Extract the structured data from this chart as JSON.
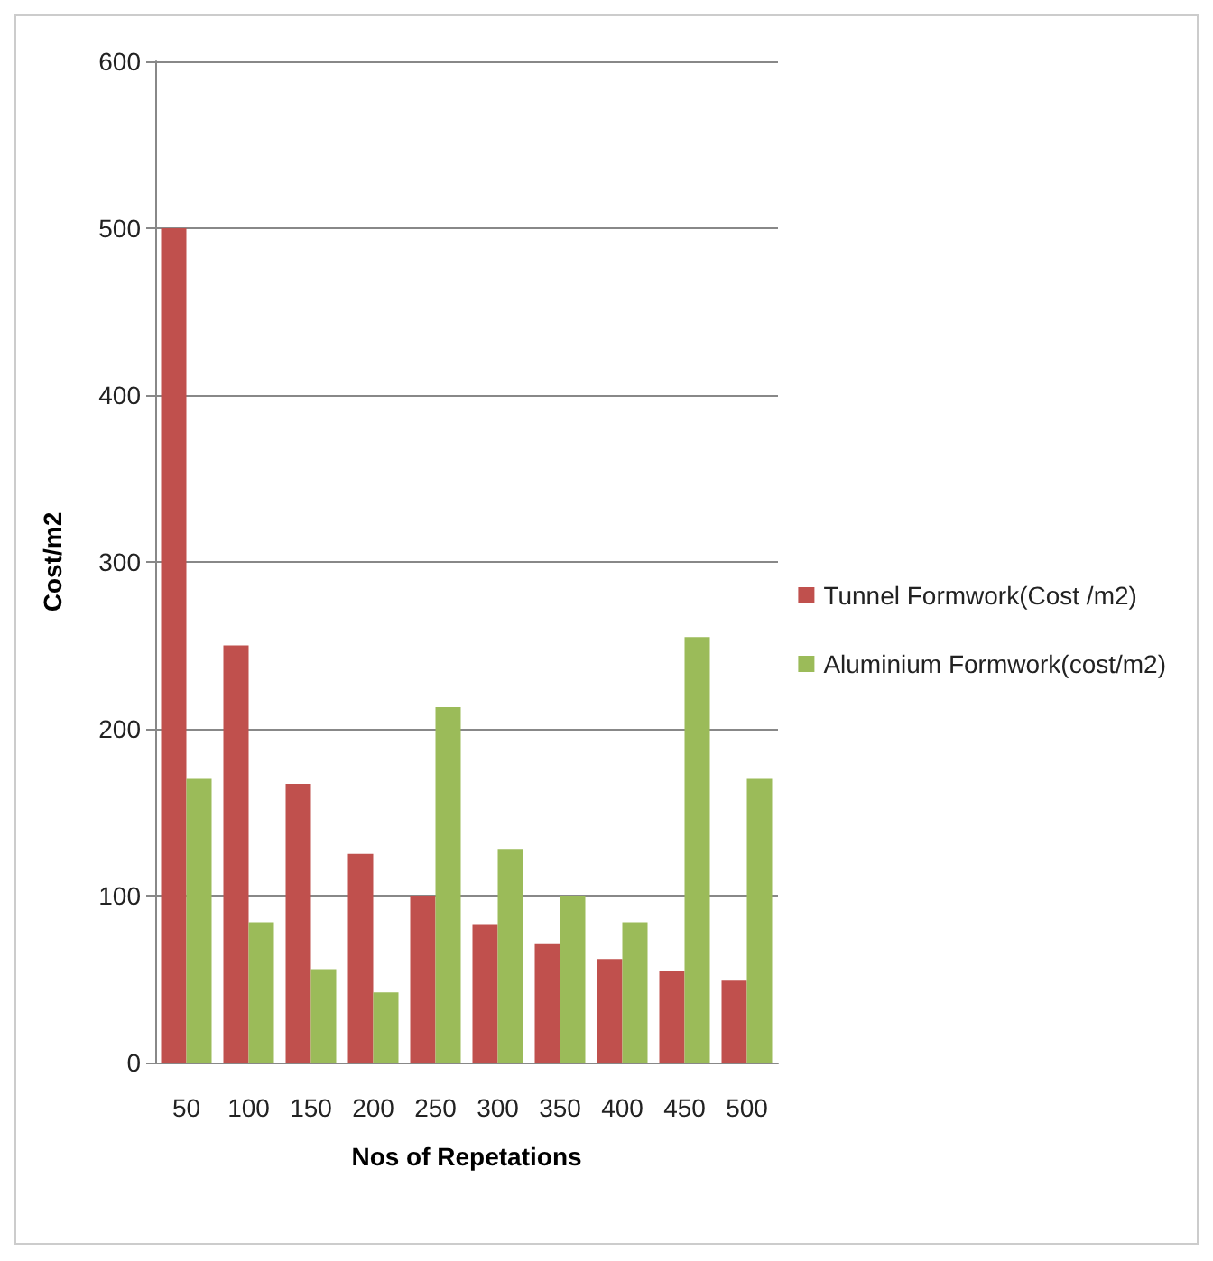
{
  "chart_data": {
    "type": "bar",
    "xlabel": "Nos of Repetations",
    "ylabel": "Cost/m2",
    "categories": [
      "50",
      "100",
      "150",
      "200",
      "250",
      "300",
      "350",
      "400",
      "450",
      "500"
    ],
    "series": [
      {
        "name": "Tunnel Formwork(Cost /m2)",
        "color": "#c0504d",
        "values": [
          500,
          250,
          167,
          125,
          100,
          83,
          71,
          62,
          55,
          49
        ]
      },
      {
        "name": "Aluminium Formwork(cost/m2)",
        "color": "#9bbb59",
        "values": [
          170,
          84,
          56,
          42,
          213,
          128,
          100,
          84,
          255,
          170
        ]
      }
    ],
    "ylim": [
      0,
      600
    ],
    "yticks": [
      0,
      100,
      200,
      300,
      400,
      500,
      600
    ],
    "grid": "y",
    "legend": "right"
  }
}
